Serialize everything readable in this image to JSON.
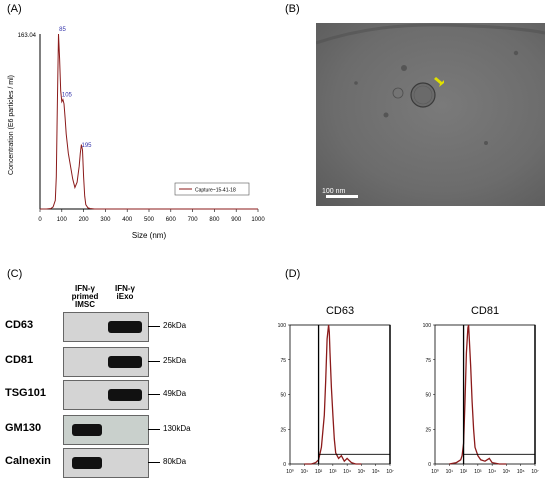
{
  "panels": {
    "A": "(A)",
    "B": "(B)",
    "C": "(C)",
    "D": "(D)"
  },
  "chart_data": [
    {
      "type": "line",
      "panel": "A",
      "xlabel": "Size (nm)",
      "ylabel": "Concentration (E6 particles / ml)",
      "xlim": [
        0,
        1000
      ],
      "ylim": [
        0,
        163.04
      ],
      "ytick_top": "163.04",
      "xticks": [
        "0",
        "100",
        "200",
        "300",
        "400",
        "500",
        "600",
        "700",
        "800",
        "900",
        "1000"
      ],
      "legend": "Capture~15-41-18",
      "legend_position": "middle-right",
      "color": "#8b1a1a",
      "peaks": [
        {
          "x": 85,
          "label": "85"
        },
        {
          "x": 105,
          "label": "105"
        },
        {
          "x": 195,
          "label": "195"
        }
      ],
      "series": [
        {
          "name": "Capture~15-41-18",
          "x": [
            0,
            30,
            50,
            60,
            70,
            75,
            80,
            85,
            90,
            95,
            100,
            105,
            110,
            115,
            120,
            130,
            140,
            150,
            160,
            170,
            180,
            185,
            190,
            195,
            200,
            205,
            210,
            220,
            230,
            250,
            300,
            400,
            500,
            600,
            700,
            800,
            900,
            1000
          ],
          "y": [
            0,
            0,
            0.5,
            2,
            8,
            30,
            100,
            163,
            140,
            110,
            100,
            102,
            98,
            85,
            70,
            52,
            40,
            28,
            20,
            25,
            40,
            52,
            60,
            55,
            30,
            12,
            4,
            1,
            0.5,
            0,
            0,
            0,
            0,
            0,
            0,
            0,
            0,
            0
          ]
        }
      ]
    },
    {
      "type": "line",
      "panel": "D",
      "title": "CD63",
      "xlim_log": [
        0,
        7
      ],
      "ylim": [
        0,
        100
      ],
      "yticks": [
        "0",
        "25",
        "50",
        "75",
        "100"
      ],
      "xticks": [
        "10⁰",
        "10¹",
        "10²",
        "10³",
        "10⁴",
        "10⁵",
        "10⁶",
        "10⁷"
      ],
      "color": "#8b1a1a",
      "gate_x_log": 2.0,
      "gate_y": 7,
      "series": [
        {
          "name": "",
          "x_log": [
            1.0,
            1.5,
            1.8,
            2.0,
            2.2,
            2.4,
            2.5,
            2.6,
            2.7,
            2.75,
            2.8,
            2.9,
            3.0,
            3.1,
            3.2,
            3.4,
            3.6,
            3.8,
            4.0,
            4.3,
            4.6,
            5.0
          ],
          "y": [
            0,
            0,
            1,
            3,
            12,
            35,
            60,
            90,
            100,
            95,
            80,
            55,
            35,
            18,
            8,
            4,
            6,
            2,
            4,
            1,
            0,
            0
          ]
        }
      ]
    },
    {
      "type": "line",
      "panel": "D",
      "title": "CD81",
      "xlim_log": [
        0,
        7
      ],
      "ylim": [
        0,
        100
      ],
      "yticks": [
        "0",
        "25",
        "50",
        "75",
        "100"
      ],
      "xticks": [
        "10⁰",
        "10¹",
        "10²",
        "10³",
        "10⁴",
        "10⁵",
        "10⁶",
        "10⁷"
      ],
      "color": "#8b1a1a",
      "gate_x_log": 2.0,
      "gate_y": 7,
      "series": [
        {
          "name": "",
          "x_log": [
            1.0,
            1.5,
            1.8,
            1.9,
            2.0,
            2.1,
            2.2,
            2.3,
            2.35,
            2.4,
            2.5,
            2.6,
            2.7,
            2.8,
            3.0,
            3.2,
            3.5,
            3.8,
            4.0,
            4.5,
            5.0
          ],
          "y": [
            0,
            1,
            3,
            6,
            15,
            45,
            80,
            98,
            100,
            90,
            70,
            45,
            25,
            12,
            6,
            3,
            2,
            4,
            1,
            0,
            0
          ]
        }
      ]
    }
  ],
  "em": {
    "scale_label": "100 nm"
  },
  "blot": {
    "columns": [
      "IFN-γ\nprimed\nIMSC",
      "IFN-γ\niExo"
    ],
    "rows": [
      {
        "marker": "CD63",
        "kda": "26kDa",
        "imsc": false,
        "iexo": true
      },
      {
        "marker": "CD81",
        "kda": "25kDa",
        "imsc": false,
        "iexo": true
      },
      {
        "marker": "TSG101",
        "kda": "49kDa",
        "imsc": false,
        "iexo": true
      },
      {
        "marker": "GM130",
        "kda": "130kDa",
        "imsc": true,
        "iexo": false
      },
      {
        "marker": "Calnexin",
        "kda": "80kDa",
        "imsc": true,
        "iexo": false
      }
    ]
  }
}
